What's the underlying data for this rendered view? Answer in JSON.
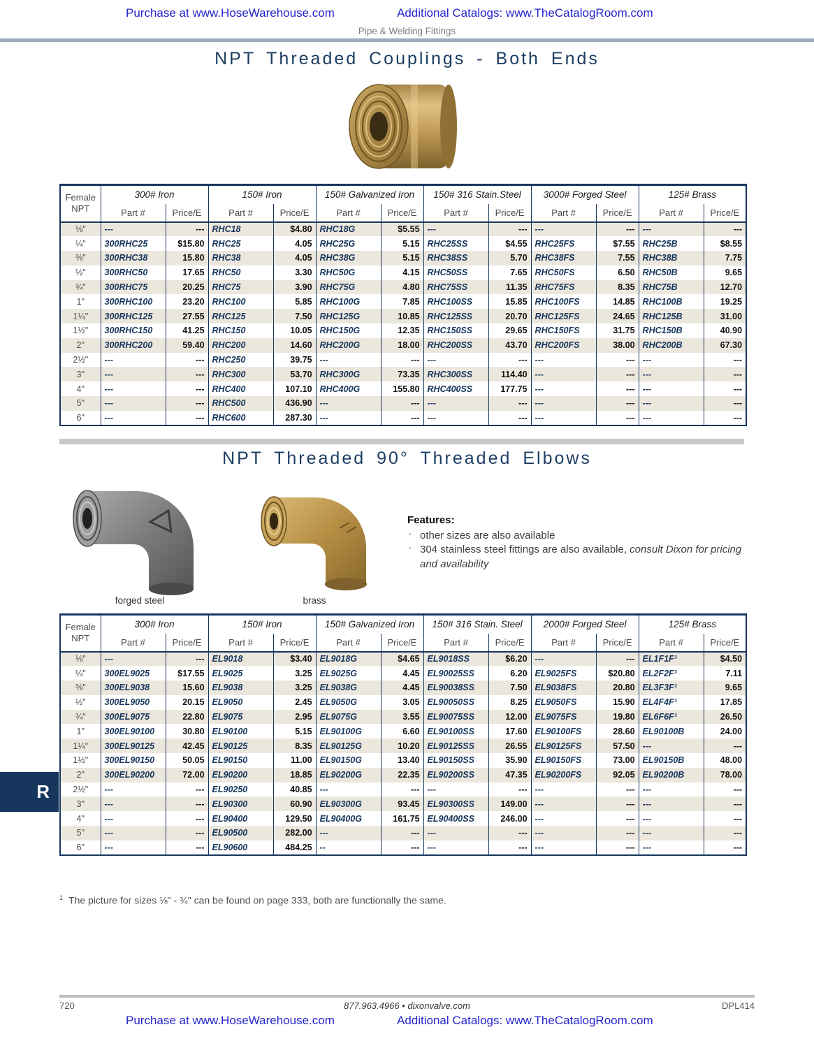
{
  "colors": {
    "accent_navy": "#17365d",
    "link_blue": "#2626cc",
    "row_stripe": "#ece7dd",
    "brass": "#c9a45c",
    "steel": "#8a8a8a"
  },
  "header": {
    "link1": "Purchase at www.HoseWarehouse.com",
    "link2": "Additional Catalogs: www.TheCatalogRoom.com",
    "subtitle": "Pipe & Welding Fittings"
  },
  "section1": {
    "title": "NPT Threaded Couplings - Both Ends"
  },
  "table1": {
    "size_header_line1": "Female",
    "size_header_line2": "NPT",
    "part_header": "Part #",
    "price_header": "Price/E",
    "col_groups": [
      "300# Iron",
      "150# Iron",
      "150# Galvanized Iron",
      "150# 316 Stain.Steel",
      "3000# Forged Steel",
      "125# Brass"
    ],
    "rows": [
      [
        "⅛\"",
        "---",
        "---",
        "RHC18",
        "$4.80",
        "RHC18G",
        "$5.55",
        "---",
        "---",
        "---",
        "---",
        "---",
        "---"
      ],
      [
        "¼\"",
        "300RHC25",
        "$15.80",
        "RHC25",
        "4.05",
        "RHC25G",
        "5.15",
        "RHC25SS",
        "$4.55",
        "RHC25FS",
        "$7.55",
        "RHC25B",
        "$8.55"
      ],
      [
        "⅜\"",
        "300RHC38",
        "15.80",
        "RHC38",
        "4.05",
        "RHC38G",
        "5.15",
        "RHC38SS",
        "5.70",
        "RHC38FS",
        "7.55",
        "RHC38B",
        "7.75"
      ],
      [
        "½\"",
        "300RHC50",
        "17.65",
        "RHC50",
        "3.30",
        "RHC50G",
        "4.15",
        "RHC50SS",
        "7.65",
        "RHC50FS",
        "6.50",
        "RHC50B",
        "9.65"
      ],
      [
        "¾\"",
        "300RHC75",
        "20.25",
        "RHC75",
        "3.90",
        "RHC75G",
        "4.80",
        "RHC75SS",
        "11.35",
        "RHC75FS",
        "8.35",
        "RHC75B",
        "12.70"
      ],
      [
        "1\"",
        "300RHC100",
        "23.20",
        "RHC100",
        "5.85",
        "RHC100G",
        "7.85",
        "RHC100SS",
        "15.85",
        "RHC100FS",
        "14.85",
        "RHC100B",
        "19.25"
      ],
      [
        "1¼\"",
        "300RHC125",
        "27.55",
        "RHC125",
        "7.50",
        "RHC125G",
        "10.85",
        "RHC125SS",
        "20.70",
        "RHC125FS",
        "24.65",
        "RHC125B",
        "31.00"
      ],
      [
        "1½\"",
        "300RHC150",
        "41.25",
        "RHC150",
        "10.05",
        "RHC150G",
        "12.35",
        "RHC150SS",
        "29.65",
        "RHC150FS",
        "31.75",
        "RHC150B",
        "40.90"
      ],
      [
        "2\"",
        "300RHC200",
        "59.40",
        "RHC200",
        "14.60",
        "RHC200G",
        "18.00",
        "RHC200SS",
        "43.70",
        "RHC200FS",
        "38.00",
        "RHC200B",
        "67.30"
      ],
      [
        "2½\"",
        "---",
        "---",
        "RHC250",
        "39.75",
        "---",
        "---",
        "---",
        "---",
        "---",
        "---",
        "---",
        "---"
      ],
      [
        "3\"",
        "---",
        "---",
        "RHC300",
        "53.70",
        "RHC300G",
        "73.35",
        "RHC300SS",
        "114.40",
        "---",
        "---",
        "---",
        "---"
      ],
      [
        "4\"",
        "---",
        "---",
        "RHC400",
        "107.10",
        "RHC400G",
        "155.80",
        "RHC400SS",
        "177.75",
        "---",
        "---",
        "---",
        "---"
      ],
      [
        "5\"",
        "---",
        "---",
        "RHC500",
        "436.90",
        "---",
        "---",
        "---",
        "---",
        "---",
        "---",
        "---",
        "---"
      ],
      [
        "6\"",
        "---",
        "---",
        "RHC600",
        "287.30",
        "---",
        "---",
        "---",
        "---",
        "---",
        "---",
        "---",
        "---"
      ]
    ]
  },
  "section2": {
    "title": "NPT Threaded 90° Threaded Elbows",
    "img1_label": "forged steel",
    "img2_label": "brass",
    "features_title": "Features:",
    "feature1": "other sizes are also available",
    "feature2_normal": "304 stainless steel fittings are also available, ",
    "feature2_italic": "consult Dixon for pricing and availability"
  },
  "table2": {
    "size_header_line1": "Female",
    "size_header_line2": "NPT",
    "part_header": "Part #",
    "price_header": "Price/E",
    "col_groups": [
      "300# Iron",
      "150# Iron",
      "150# Galvanized Iron",
      "150# 316 Stain. Steel",
      "2000# Forged Steel",
      "125# Brass"
    ],
    "rows": [
      [
        "⅛\"",
        "---",
        "---",
        "EL9018",
        "$3.40",
        "EL9018G",
        "$4.65",
        "EL9018SS",
        "$6.20",
        "---",
        "---",
        "EL1F1F¹",
        "$4.50"
      ],
      [
        "¼\"",
        "300EL9025",
        "$17.55",
        "EL9025",
        "3.25",
        "EL9025G",
        "4.45",
        "EL90025SS",
        "6.20",
        "EL9025FS",
        "$20.80",
        "EL2F2F¹",
        "7.11"
      ],
      [
        "⅜\"",
        "300EL9038",
        "15.60",
        "EL9038",
        "3.25",
        "EL9038G",
        "4.45",
        "EL90038SS",
        "7.50",
        "EL9038FS",
        "20.80",
        "EL3F3F¹",
        "9.65"
      ],
      [
        "½\"",
        "300EL9050",
        "20.15",
        "EL9050",
        "2.45",
        "EL9050G",
        "3.05",
        "EL90050SS",
        "8.25",
        "EL9050FS",
        "15.90",
        "EL4F4F¹",
        "17.85"
      ],
      [
        "¾\"",
        "300EL9075",
        "22.80",
        "EL9075",
        "2.95",
        "EL9075G",
        "3.55",
        "EL90075SS",
        "12.00",
        "EL9075FS",
        "19.80",
        "EL6F6F¹",
        "26.50"
      ],
      [
        "1\"",
        "300EL90100",
        "30.80",
        "EL90100",
        "5.15",
        "EL90100G",
        "6.60",
        "EL90100SS",
        "17.60",
        "EL90100FS",
        "28.60",
        "EL90100B",
        "24.00"
      ],
      [
        "1¼\"",
        "300EL90125",
        "42.45",
        "EL90125",
        "8.35",
        "EL90125G",
        "10.20",
        "EL90125SS",
        "26.55",
        "EL90125FS",
        "57.50",
        "---",
        "---"
      ],
      [
        "1½\"",
        "300EL90150",
        "50.05",
        "EL90150",
        "11.00",
        "EL90150G",
        "13.40",
        "EL90150SS",
        "35.90",
        "EL90150FS",
        "73.00",
        "EL90150B",
        "48.00"
      ],
      [
        "2\"",
        "300EL90200",
        "72.00",
        "EL90200",
        "18.85",
        "EL90200G",
        "22.35",
        "EL90200SS",
        "47.35",
        "EL90200FS",
        "92.05",
        "EL90200B",
        "78.00"
      ],
      [
        "2½\"",
        "---",
        "---",
        "EL90250",
        "40.85",
        "---",
        "---",
        "---",
        "---",
        "---",
        "---",
        "---",
        "---"
      ],
      [
        "3\"",
        "---",
        "---",
        "EL90300",
        "60.90",
        "EL90300G",
        "93.45",
        "EL90300SS",
        "149.00",
        "---",
        "---",
        "---",
        "---"
      ],
      [
        "4\"",
        "---",
        "---",
        "EL90400",
        "129.50",
        "EL90400G",
        "161.75",
        "EL90400SS",
        "246.00",
        "---",
        "---",
        "---",
        "---"
      ],
      [
        "5\"",
        "---",
        "---",
        "EL90500",
        "282.00",
        "---",
        "---",
        "---",
        "---",
        "---",
        "---",
        "---",
        "---"
      ],
      [
        "6\"",
        "---",
        "---",
        "EL90600",
        "484.25",
        "--",
        "---",
        "---",
        "---",
        "---",
        "---",
        "---",
        "---"
      ]
    ]
  },
  "footnote": {
    "sup": "1",
    "text": "The picture for sizes ⅛\" -  ¾\" can be found on page 333, both are functionally the same."
  },
  "side_tab": {
    "label": "R"
  },
  "footer": {
    "page_number": "720",
    "center": "877.963.4966 • dixonvalve.com",
    "doc_code": "DPL414",
    "link1": "Purchase at www.HoseWarehouse.com",
    "link2": "Additional Catalogs: www.TheCatalogRoom.com"
  }
}
